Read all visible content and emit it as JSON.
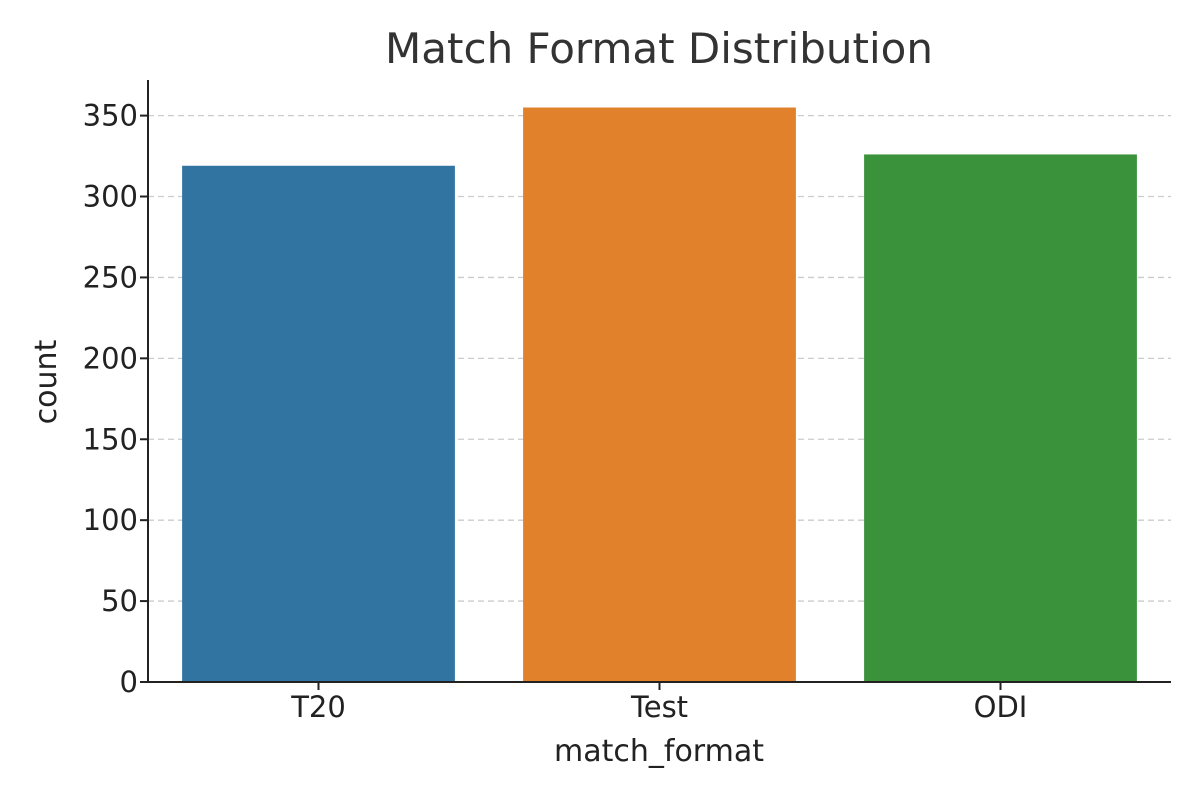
{
  "chart_data": {
    "type": "bar",
    "title": "Match Format Distribution",
    "xlabel": "match_format",
    "ylabel": "count",
    "categories": [
      "T20",
      "Test",
      "ODI"
    ],
    "values": [
      319,
      355,
      326
    ],
    "colors": [
      "#3274a1",
      "#e1812c",
      "#3a923a"
    ],
    "ylim": [
      0,
      372
    ],
    "yticks": [
      0,
      50,
      100,
      150,
      200,
      250,
      300,
      350
    ],
    "grid": "y-dashed"
  }
}
